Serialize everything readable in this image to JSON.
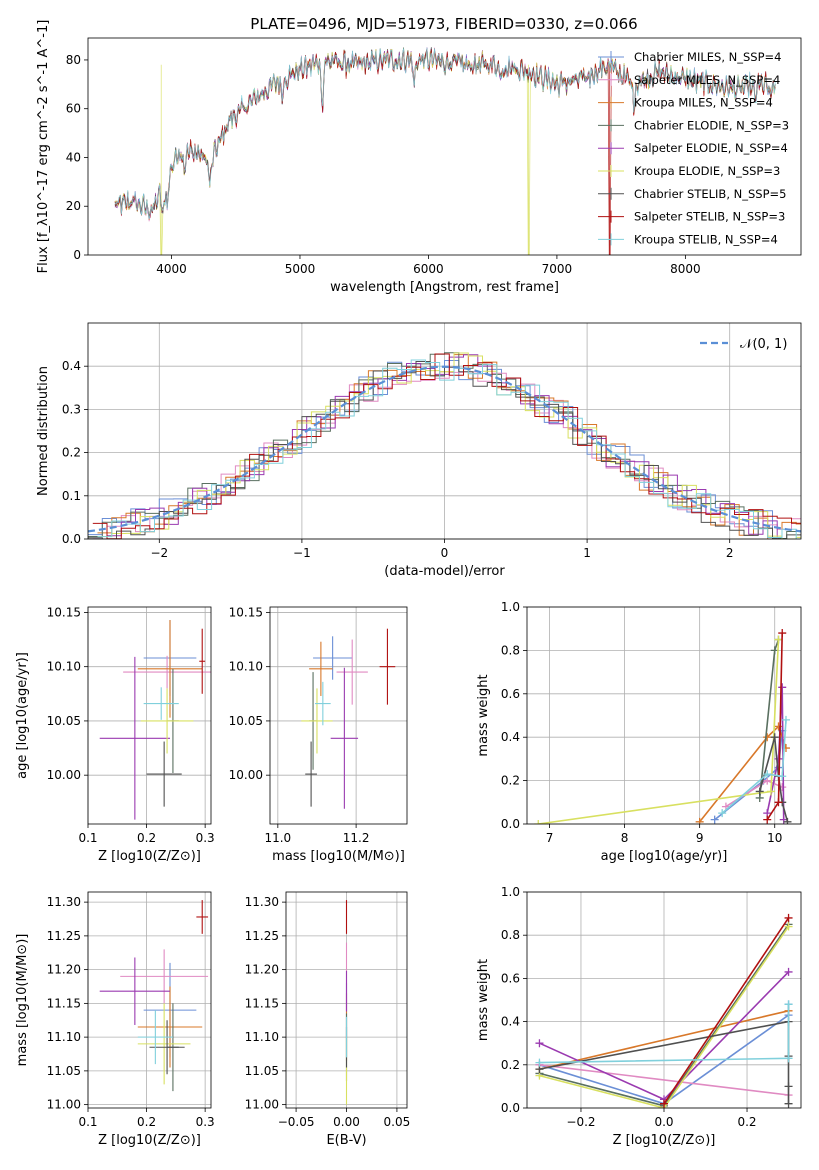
{
  "title": "PLATE=0496, MJD=51973, FIBERID=0330, z=0.066",
  "colors": [
    "#6b8fd6",
    "#e08ac2",
    "#d8782a",
    "#5a7060",
    "#9a3ab0",
    "#d8e060",
    "#505050",
    "#b01010",
    "#80d0dc"
  ],
  "chart_data": [
    {
      "id": "spectrum",
      "type": "line",
      "xlabel": "wavelength [Angstrom, rest frame]",
      "ylabel": "Flux [f_λ10^-17 erg cm^-2 s^-1 A^-1]",
      "xlim": [
        3350,
        8900
      ],
      "ylim": [
        0,
        89
      ],
      "xticks": [
        4000,
        5000,
        6000,
        7000,
        8000
      ],
      "yticks": [
        0,
        20,
        40,
        60,
        80
      ],
      "legend_position": "upper-right",
      "series": [
        {
          "name": "Chabrier MILES, N_SSP=4"
        },
        {
          "name": "Salpeter MILES, N_SSP=4"
        },
        {
          "name": "Kroupa MILES, N_SSP=4"
        },
        {
          "name": "Chabrier ELODIE, N_SSP=3"
        },
        {
          "name": "Salpeter ELODIE, N_SSP=4"
        },
        {
          "name": "Kroupa ELODIE, N_SSP=3"
        },
        {
          "name": "Chabrier STELIB, N_SSP=5"
        },
        {
          "name": "Salpeter STELIB, N_SSP=3"
        },
        {
          "name": "Kroupa STELIB, N_SSP=4"
        }
      ],
      "continuum": [
        [
          3560,
          20
        ],
        [
          3700,
          22
        ],
        [
          3850,
          18
        ],
        [
          3950,
          30
        ],
        [
          4050,
          42
        ],
        [
          4200,
          42
        ],
        [
          4300,
          38
        ],
        [
          4450,
          55
        ],
        [
          4600,
          62
        ],
        [
          4800,
          70
        ],
        [
          5000,
          76
        ],
        [
          5200,
          80
        ],
        [
          5400,
          78
        ],
        [
          5700,
          80
        ],
        [
          6000,
          80
        ],
        [
          6300,
          78
        ],
        [
          6560,
          78
        ],
        [
          6800,
          75
        ],
        [
          7000,
          70
        ],
        [
          7200,
          72
        ],
        [
          7400,
          78
        ],
        [
          7600,
          70
        ],
        [
          7800,
          75
        ],
        [
          8000,
          72
        ],
        [
          8200,
          70
        ],
        [
          8400,
          68
        ],
        [
          8600,
          70
        ],
        [
          8700,
          69
        ]
      ],
      "absorption": [
        [
          3934,
          14
        ],
        [
          3968,
          12
        ],
        [
          4102,
          6
        ],
        [
          4300,
          10
        ],
        [
          4861,
          6
        ],
        [
          5175,
          18
        ],
        [
          5890,
          10
        ],
        [
          6563,
          5
        ],
        [
          7600,
          8
        ],
        [
          8542,
          6
        ],
        [
          8662,
          6
        ]
      ],
      "cutoffs": [
        {
          "series": 5,
          "x": 3920
        },
        {
          "series": 5,
          "x": 6780
        },
        {
          "series": 7,
          "x": 7410
        }
      ]
    },
    {
      "id": "residuals",
      "type": "histogram",
      "xlabel": "(data-model)/error",
      "ylabel": "Normed distribution",
      "xlim": [
        -2.5,
        2.5
      ],
      "ylim": [
        0,
        0.5
      ],
      "xticks": [
        -2,
        -1,
        0,
        1,
        2
      ],
      "yticks": [
        0.0,
        0.1,
        0.2,
        0.3,
        0.4
      ],
      "grid": true,
      "bin_width": 0.1,
      "reference_curve": {
        "name": "𝒩(0, 1)",
        "mean": 0,
        "sigma": 1,
        "style": "dashed"
      },
      "legend_position": "upper-right"
    },
    {
      "id": "age_vs_Z",
      "type": "errorbar",
      "xlabel": "Z [log10(Z/Z⊙)]",
      "ylabel": "age [log10(age/yr)]",
      "xlim": [
        0.1,
        0.31
      ],
      "ylim": [
        9.955,
        10.155
      ],
      "xticks": [
        0.1,
        0.2,
        0.3
      ],
      "yticks": [
        10.0,
        10.05,
        10.1,
        10.15
      ],
      "grid": true,
      "points": [
        {
          "x": 0.24,
          "y": 10.108,
          "xerr": 0.045,
          "yerr": 0.035
        },
        {
          "x": 0.235,
          "y": 10.095,
          "xerr": 0.075,
          "yerr": 0.015
        },
        {
          "x": 0.24,
          "y": 10.098,
          "xerr": 0.055,
          "yerr": 0.045
        },
        {
          "x": 0.245,
          "y": 10.05,
          "xerr": 0.01,
          "yerr": 0.048
        },
        {
          "x": 0.18,
          "y": 10.034,
          "xerr": 0.06,
          "yerr": 0.075
        },
        {
          "x": 0.235,
          "y": 10.05,
          "xerr": 0.045,
          "yerr": 0.03
        },
        {
          "x": 0.23,
          "y": 10.001,
          "xerr": 0.03,
          "yerr": 0.03
        },
        {
          "x": 0.295,
          "y": 10.105,
          "xerr": 0.005,
          "yerr": 0.03
        },
        {
          "x": 0.225,
          "y": 10.066,
          "xerr": 0.03,
          "yerr": 0.015
        }
      ]
    },
    {
      "id": "age_vs_mass",
      "type": "errorbar",
      "xlabel": "mass [log10(M/M⊙)]",
      "ylabel": "",
      "xlim": [
        10.98,
        11.33
      ],
      "ylim": [
        9.955,
        10.155
      ],
      "xticks": [
        11.0,
        11.2
      ],
      "yticks": [
        10.0,
        10.05,
        10.1,
        10.15
      ],
      "grid": true,
      "points": [
        {
          "x": 11.14,
          "y": 10.108,
          "xerr": 0.05,
          "yerr": 0.02
        },
        {
          "x": 11.19,
          "y": 10.095,
          "xerr": 0.04,
          "yerr": 0.03
        },
        {
          "x": 11.11,
          "y": 10.098,
          "xerr": 0.03,
          "yerr": 0.025
        },
        {
          "x": 11.09,
          "y": 10.05,
          "xerr": 0.01,
          "yerr": 0.045
        },
        {
          "x": 11.17,
          "y": 10.034,
          "xerr": 0.035,
          "yerr": 0.065
        },
        {
          "x": 11.1,
          "y": 10.05,
          "xerr": 0.04,
          "yerr": 0.03
        },
        {
          "x": 11.085,
          "y": 10.001,
          "xerr": 0.015,
          "yerr": 0.03
        },
        {
          "x": 11.28,
          "y": 10.1,
          "xerr": 0.02,
          "yerr": 0.035
        },
        {
          "x": 11.115,
          "y": 10.066,
          "xerr": 0.02,
          "yerr": 0.02
        }
      ]
    },
    {
      "id": "weight_vs_age",
      "type": "line",
      "xlabel": "age [log10(age/yr)]",
      "ylabel": "mass weight",
      "xlim": [
        6.7,
        10.35
      ],
      "ylim": [
        0,
        1.0
      ],
      "xticks": [
        7,
        8,
        9,
        10
      ],
      "yticks": [
        0.0,
        0.2,
        0.4,
        0.6,
        0.8,
        1.0
      ],
      "grid": true,
      "series": [
        {
          "x": [
            9.2,
            9.85,
            10.05,
            10.1
          ],
          "y": [
            0.02,
            0.2,
            0.26,
            0.43
          ]
        },
        {
          "x": [
            9.35,
            9.9,
            10.1
          ],
          "y": [
            0.08,
            0.2,
            0.17
          ]
        },
        {
          "x": [
            9.0,
            9.9,
            10.05,
            10.15
          ],
          "y": [
            0.01,
            0.4,
            0.45,
            0.35
          ]
        },
        {
          "x": [
            9.8,
            10.0,
            10.05
          ],
          "y": [
            0.12,
            0.8,
            0.85
          ]
        },
        {
          "x": [
            9.9,
            10.05,
            10.1,
            10.12
          ],
          "y": [
            0.05,
            0.3,
            0.63,
            0.02
          ]
        },
        {
          "x": [
            6.85,
            9.95,
            10.05
          ],
          "y": [
            0.0,
            0.15,
            0.85
          ]
        },
        {
          "x": [
            9.8,
            10.0,
            10.05,
            10.1,
            10.17
          ],
          "y": [
            0.15,
            0.4,
            0.22,
            0.1,
            0.01
          ]
        },
        {
          "x": [
            9.9,
            10.05,
            10.1
          ],
          "y": [
            0.02,
            0.1,
            0.88
          ]
        },
        {
          "x": [
            9.3,
            9.9,
            10.1,
            10.15
          ],
          "y": [
            0.05,
            0.23,
            0.22,
            0.48
          ]
        }
      ]
    },
    {
      "id": "mass_vs_Z",
      "type": "errorbar",
      "xlabel": "Z [log10(Z/Z⊙)]",
      "ylabel": "mass [log10(M/M⊙)]",
      "xlim": [
        0.1,
        0.31
      ],
      "ylim": [
        10.995,
        11.315
      ],
      "xticks": [
        0.1,
        0.2,
        0.3
      ],
      "yticks": [
        11.0,
        11.05,
        11.1,
        11.15,
        11.2,
        11.25,
        11.3
      ],
      "grid": true,
      "points": [
        {
          "x": 0.24,
          "y": 11.14,
          "xerr": 0.045,
          "yerr": 0.07
        },
        {
          "x": 0.23,
          "y": 11.19,
          "xerr": 0.075,
          "yerr": 0.04
        },
        {
          "x": 0.24,
          "y": 11.115,
          "xerr": 0.055,
          "yerr": 0.06
        },
        {
          "x": 0.245,
          "y": 11.085,
          "xerr": 0.01,
          "yerr": 0.065
        },
        {
          "x": 0.18,
          "y": 11.168,
          "xerr": 0.06,
          "yerr": 0.05
        },
        {
          "x": 0.23,
          "y": 11.09,
          "xerr": 0.045,
          "yerr": 0.06
        },
        {
          "x": 0.235,
          "y": 11.085,
          "xerr": 0.03,
          "yerr": 0.04
        },
        {
          "x": 0.295,
          "y": 11.278,
          "xerr": 0.01,
          "yerr": 0.025
        },
        {
          "x": 0.215,
          "y": 11.1,
          "xerr": 0.03,
          "yerr": 0.04
        }
      ]
    },
    {
      "id": "mass_vs_EBV",
      "type": "errorbar",
      "xlabel": "E(B-V)",
      "ylabel": "",
      "xlim": [
        -0.06,
        0.06
      ],
      "ylim": [
        10.995,
        11.315
      ],
      "xticks": [
        -0.05,
        0.0,
        0.05
      ],
      "yticks": [
        11.0,
        11.05,
        11.1,
        11.15,
        11.2,
        11.25,
        11.3
      ],
      "grid": true,
      "points": [
        {
          "x": 0,
          "y": 11.14,
          "xerr": 0,
          "yerr": 0.04
        },
        {
          "x": 0,
          "y": 11.19,
          "xerr": 0,
          "yerr": 0.05
        },
        {
          "x": 0,
          "y": 11.115,
          "xerr": 0,
          "yerr": 0.05
        },
        {
          "x": 0,
          "y": 11.085,
          "xerr": 0,
          "yerr": 0.05
        },
        {
          "x": 0,
          "y": 11.168,
          "xerr": 0,
          "yerr": 0.03
        },
        {
          "x": 0,
          "y": 11.05,
          "xerr": 0,
          "yerr": 0.05
        },
        {
          "x": 0,
          "y": 11.085,
          "xerr": 0,
          "yerr": 0.03
        },
        {
          "x": 0,
          "y": 11.278,
          "xerr": 0,
          "yerr": 0.025
        },
        {
          "x": 0,
          "y": 11.1,
          "xerr": 0,
          "yerr": 0.03
        }
      ]
    },
    {
      "id": "weight_vs_Z",
      "type": "line",
      "xlabel": "Z [log10(Z/Z⊙)]",
      "ylabel": "mass weight",
      "xlim": [
        -0.33,
        0.33
      ],
      "ylim": [
        0,
        1.0
      ],
      "xticks": [
        -0.2,
        0.0,
        0.2
      ],
      "yticks": [
        0.0,
        0.2,
        0.4,
        0.6,
        0.8,
        1.0
      ],
      "grid": true,
      "series": [
        {
          "x": [
            -0.3,
            0.0,
            0.3,
            0.3
          ],
          "y": [
            0.2,
            0.02,
            0.43,
            0.48
          ]
        },
        {
          "x": [
            -0.3,
            0.3
          ],
          "y": [
            0.2,
            0.06
          ]
        },
        {
          "x": [
            -0.3,
            0.3
          ],
          "y": [
            0.18,
            0.45
          ]
        },
        {
          "x": [
            -0.3,
            0.0,
            0.3
          ],
          "y": [
            0.16,
            0.01,
            0.85
          ]
        },
        {
          "x": [
            -0.3,
            0.0,
            0.3
          ],
          "y": [
            0.3,
            0.04,
            0.63
          ]
        },
        {
          "x": [
            -0.3,
            0.0,
            0.3
          ],
          "y": [
            0.15,
            0.0,
            0.84
          ]
        },
        {
          "x": [
            -0.3,
            0.3,
            0.3,
            0.3,
            0.3
          ],
          "y": [
            0.18,
            0.4,
            0.24,
            0.1,
            0.02
          ]
        },
        {
          "x": [
            0.0,
            0.3
          ],
          "y": [
            0.02,
            0.88
          ]
        },
        {
          "x": [
            -0.3,
            0.3,
            0.3
          ],
          "y": [
            0.21,
            0.23,
            0.48
          ]
        }
      ]
    }
  ]
}
